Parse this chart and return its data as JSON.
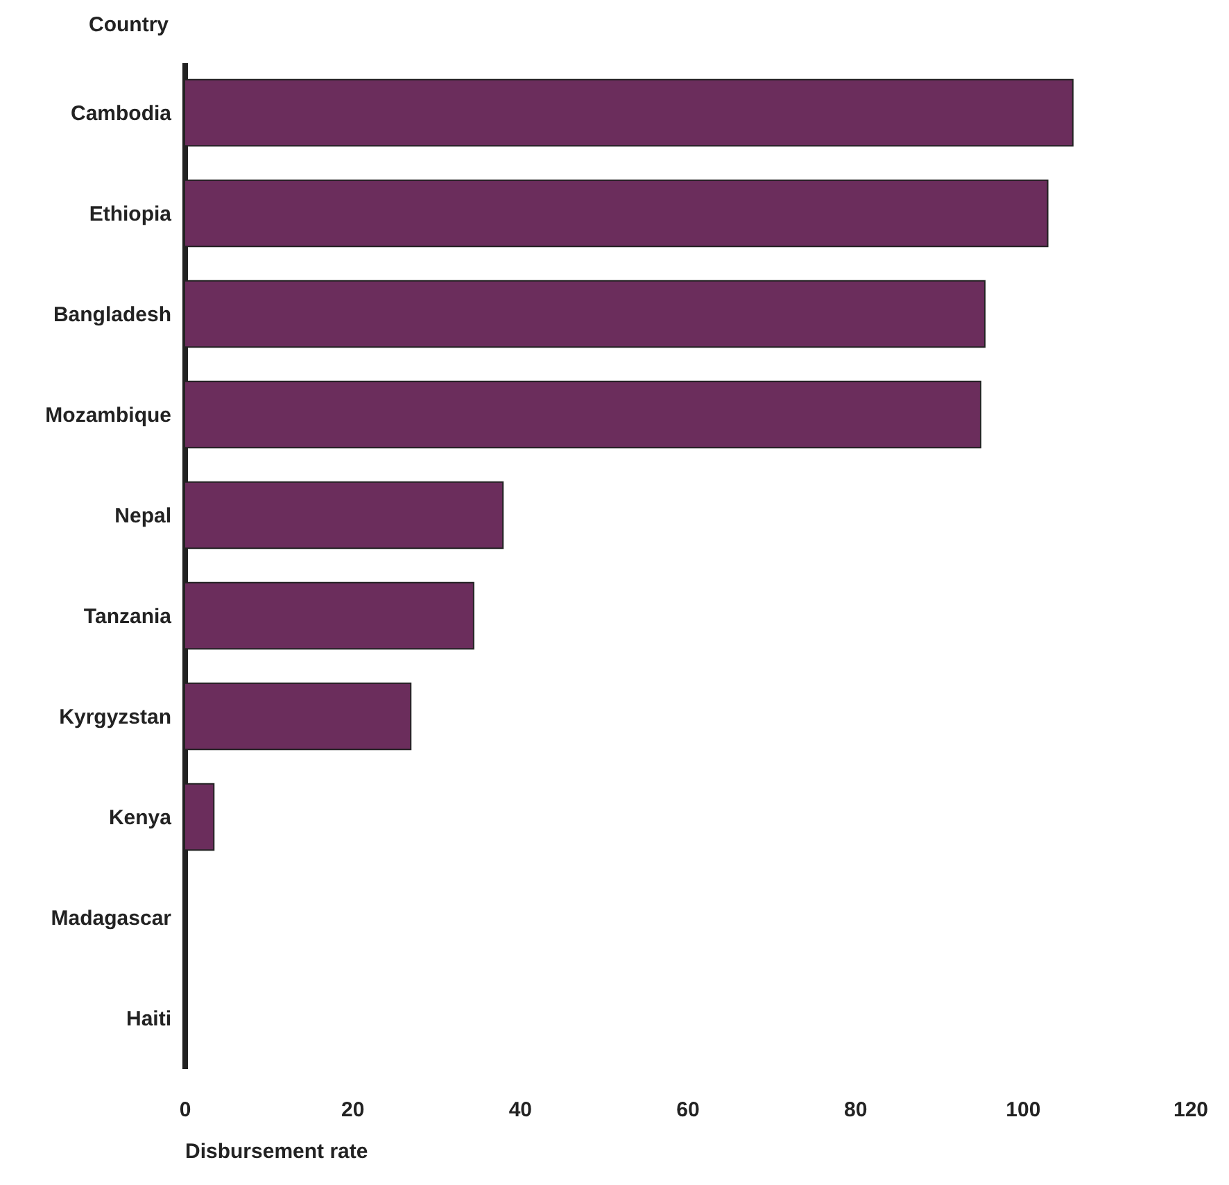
{
  "chart_data": {
    "type": "bar",
    "orientation": "horizontal",
    "xlabel": "Disbursement rate",
    "ylabel": "Country",
    "categories": [
      "Cambodia",
      "Ethiopia",
      "Bangladesh",
      "Mozambique",
      "Nepal",
      "Tanzania",
      "Kyrgyzstan",
      "Kenya",
      "Madagascar",
      "Haiti"
    ],
    "values": [
      106,
      103,
      95.5,
      95,
      38,
      34.5,
      27,
      3.5,
      0,
      0
    ],
    "color": "#6b2d5c",
    "xlim": [
      0,
      120
    ],
    "xticks": [
      0,
      20,
      40,
      60,
      80,
      100,
      120
    ],
    "grid": false
  }
}
